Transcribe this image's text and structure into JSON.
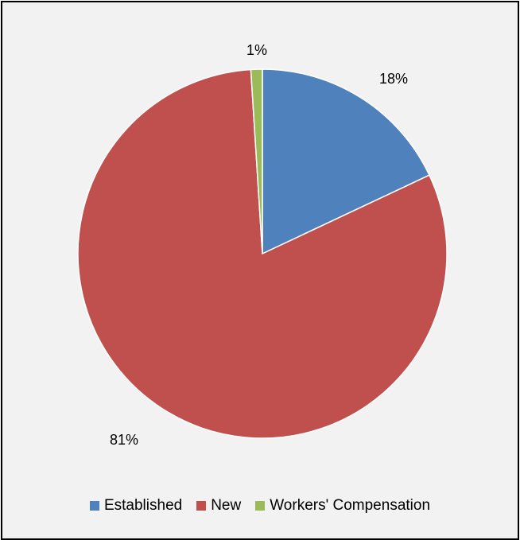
{
  "chart_data": {
    "type": "pie",
    "categories": [
      "Established",
      "New",
      "Workers' Compensation"
    ],
    "values": [
      18,
      81,
      1
    ],
    "labels": [
      "18%",
      "81%",
      "1%"
    ],
    "colors": [
      "#4f81bd",
      "#c0504d",
      "#9bbb59"
    ],
    "legend_position": "bottom",
    "start_angle": "top",
    "direction": "clockwise"
  }
}
